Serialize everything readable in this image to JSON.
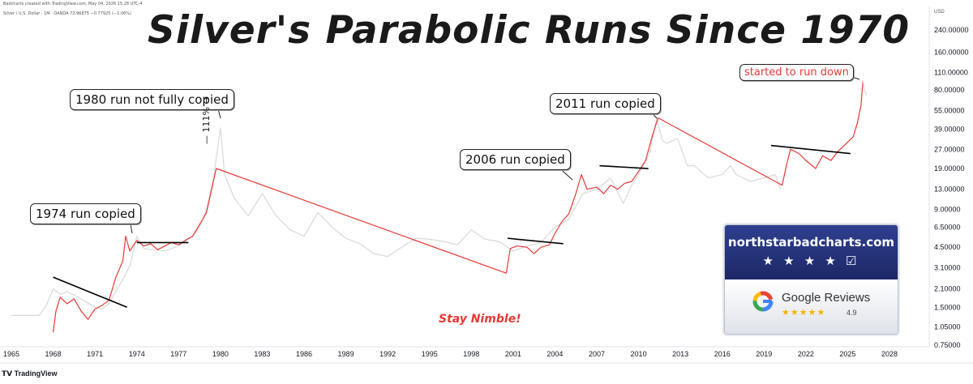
{
  "header": {
    "created_line": "Badcharts created with TradingView.com, May 04, 2026 15:28 UTC-4",
    "symbol_line": "Silver / U.S. Dollar · 1M · OANDA  72.96875  −0.77925 (−1.06%)",
    "currency": "USD"
  },
  "chart_data": {
    "type": "line",
    "title": "Silver's Parabolic Runs Since 1970",
    "y_scale": "log",
    "ylim": [
      0.75,
      240
    ],
    "x_ticks": [
      "1965",
      "1968",
      "1971",
      "1974",
      "1977",
      "1980",
      "1983",
      "1986",
      "1989",
      "1992",
      "1995",
      "1998",
      "2001",
      "2004",
      "2007",
      "2010",
      "2013",
      "2016",
      "2019",
      "2022",
      "2025",
      "2028"
    ],
    "y_ticks": [
      "240.00000",
      "160.00000",
      "110.00000",
      "80.00000",
      "55.00000",
      "39.00000",
      "27.00000",
      "19.00000",
      "13.00000",
      "9.00000",
      "6.50000",
      "4.50000",
      "3.10000",
      "2.10000",
      "1.50000",
      "1.05000",
      "0.75000"
    ],
    "series": [
      {
        "color": "#d9d9d9",
        "points": [
          [
            1965,
            1.29
          ],
          [
            1967,
            1.29
          ],
          [
            1967.5,
            1.55
          ],
          [
            1968,
            2.1
          ],
          [
            1968.5,
            1.9
          ],
          [
            1969,
            2.0
          ],
          [
            1970,
            1.75
          ],
          [
            1971,
            1.5
          ],
          [
            1971.5,
            1.45
          ],
          [
            1972,
            1.6
          ],
          [
            1973,
            2.5
          ],
          [
            1973.5,
            3.2
          ],
          [
            1974,
            5.5
          ],
          [
            1974.5,
            4.4
          ],
          [
            1975,
            4.3
          ],
          [
            1976,
            4.2
          ],
          [
            1977,
            4.6
          ],
          [
            1978,
            5.5
          ],
          [
            1978.5,
            6.5
          ],
          [
            1979,
            9.0
          ],
          [
            1979.5,
            16
          ],
          [
            1980,
            40
          ],
          [
            1980.3,
            17
          ],
          [
            1980.6,
            14
          ],
          [
            1981,
            11
          ],
          [
            1982,
            8
          ],
          [
            1983,
            12
          ],
          [
            1984,
            8
          ],
          [
            1985,
            6.2
          ],
          [
            1986,
            5.5
          ],
          [
            1987,
            8.5
          ],
          [
            1988,
            6.5
          ],
          [
            1989,
            5.3
          ],
          [
            1990,
            4.8
          ],
          [
            1991,
            4.0
          ],
          [
            1992,
            3.8
          ],
          [
            1993,
            4.5
          ],
          [
            1994,
            5.3
          ],
          [
            1995,
            5.2
          ],
          [
            1996,
            5.0
          ],
          [
            1997,
            4.7
          ],
          [
            1998,
            6.2
          ],
          [
            1999,
            5.2
          ],
          [
            2000,
            5.0
          ],
          [
            2001,
            4.2
          ],
          [
            2002,
            4.6
          ],
          [
            2003,
            4.9
          ],
          [
            2004,
            6.5
          ],
          [
            2005,
            7.5
          ],
          [
            2006,
            12
          ],
          [
            2007,
            13
          ],
          [
            2008,
            16
          ],
          [
            2008.9,
            10
          ],
          [
            2009.5,
            14
          ],
          [
            2010,
            17
          ],
          [
            2010.8,
            25
          ],
          [
            2011.3,
            48
          ],
          [
            2011.7,
            32
          ],
          [
            2012,
            30
          ],
          [
            2012.8,
            33
          ],
          [
            2013.5,
            20
          ],
          [
            2014,
            20
          ],
          [
            2015,
            16
          ],
          [
            2016,
            17
          ],
          [
            2016.6,
            20
          ],
          [
            2017,
            17
          ],
          [
            2018,
            15
          ],
          [
            2019,
            16
          ],
          [
            2019.8,
            17
          ],
          [
            2020.2,
            13
          ]
        ]
      },
      {
        "color": "#e53935",
        "points": [
          [
            1968,
            0.95
          ],
          [
            1968.2,
            1.4
          ],
          [
            1968.5,
            1.8
          ],
          [
            1969,
            1.6
          ],
          [
            1969.5,
            1.75
          ],
          [
            1970,
            1.4
          ],
          [
            1970.5,
            1.2
          ],
          [
            1971,
            1.45
          ],
          [
            1971.5,
            1.55
          ],
          [
            1972,
            1.7
          ],
          [
            1972.5,
            2.6
          ],
          [
            1973,
            3.5
          ],
          [
            1973.2,
            5.5
          ],
          [
            1973.5,
            4.2
          ],
          [
            1974,
            5.1
          ],
          [
            1974.5,
            4.6
          ],
          [
            1975,
            4.8
          ],
          [
            1975.5,
            4.3
          ],
          [
            1976,
            4.6
          ],
          [
            1976.5,
            4.9
          ],
          [
            1977,
            4.7
          ],
          [
            1977.6,
            5.2
          ],
          [
            1978,
            5.5
          ],
          [
            1978.5,
            6.8
          ],
          [
            1979,
            8.5
          ],
          [
            1979.3,
            12
          ],
          [
            1979.7,
            19
          ],
          [
            2000.5,
            2.8
          ],
          [
            2000.8,
            4.4
          ],
          [
            2001.3,
            4.6
          ],
          [
            2002,
            4.5
          ],
          [
            2002.5,
            4.0
          ],
          [
            2003,
            4.5
          ],
          [
            2003.6,
            4.7
          ],
          [
            2004,
            5.8
          ],
          [
            2004.5,
            7.2
          ],
          [
            2005,
            8.3
          ],
          [
            2005.5,
            12
          ],
          [
            2005.9,
            17
          ],
          [
            2006.3,
            13
          ],
          [
            2007,
            13.5
          ],
          [
            2007.5,
            12
          ],
          [
            2008,
            14
          ],
          [
            2008.5,
            13
          ],
          [
            2009,
            14.5
          ],
          [
            2009.5,
            15
          ],
          [
            2010,
            18
          ],
          [
            2010.5,
            22
          ],
          [
            2011,
            35
          ],
          [
            2011.4,
            48
          ],
          [
            2020.3,
            14
          ],
          [
            2020.6,
            20
          ],
          [
            2020.9,
            27
          ],
          [
            2021.5,
            25
          ],
          [
            2022,
            22
          ],
          [
            2022.7,
            19
          ],
          [
            2023.2,
            24
          ],
          [
            2023.8,
            22
          ],
          [
            2024.3,
            26
          ],
          [
            2024.9,
            30
          ],
          [
            2025.4,
            34
          ],
          [
            2025.7,
            44
          ],
          [
            2025.95,
            60
          ],
          [
            2026.1,
            95
          ]
        ]
      },
      {
        "color": "#d9d9d9",
        "points": [
          [
            2026.1,
            95
          ],
          [
            2026.2,
            80
          ],
          [
            2026.35,
            73
          ]
        ]
      }
    ],
    "trend_lines": [
      {
        "color": "#000000",
        "points": [
          [
            1968,
            2.6
          ],
          [
            1973.3,
            1.5
          ]
        ]
      },
      {
        "color": "#000000",
        "points": [
          [
            1974,
            4.9
          ],
          [
            1977.7,
            4.9
          ]
        ]
      },
      {
        "color": "#000000",
        "points": [
          [
            2000.6,
            5.3
          ],
          [
            2004.6,
            4.8
          ]
        ]
      },
      {
        "color": "#000000",
        "points": [
          [
            2007.2,
            20
          ],
          [
            2010.7,
            19
          ]
        ]
      },
      {
        "color": "#000000",
        "points": [
          [
            2019.5,
            29
          ],
          [
            2025.2,
            25
          ]
        ]
      }
    ],
    "annotations": [
      {
        "key": "a1974",
        "text": "1974 run copied"
      },
      {
        "key": "a1980",
        "text": "1980 run not fully copied"
      },
      {
        "key": "a2006",
        "text": "2006 run copied"
      },
      {
        "key": "a2011",
        "text": "2011 run copied"
      },
      {
        "key": "adown",
        "text": "started to run down"
      },
      {
        "key": "pct",
        "text": "111%"
      }
    ],
    "note": "Stay Nimble!"
  },
  "badge": {
    "site": "northstarbadcharts.com",
    "stars": "★ ★ ★ ★ ☑",
    "reviews_label": "Google Reviews",
    "review_stars": "★★★★★",
    "rating": "4.9"
  },
  "footer": {
    "brand": "TradingView"
  }
}
